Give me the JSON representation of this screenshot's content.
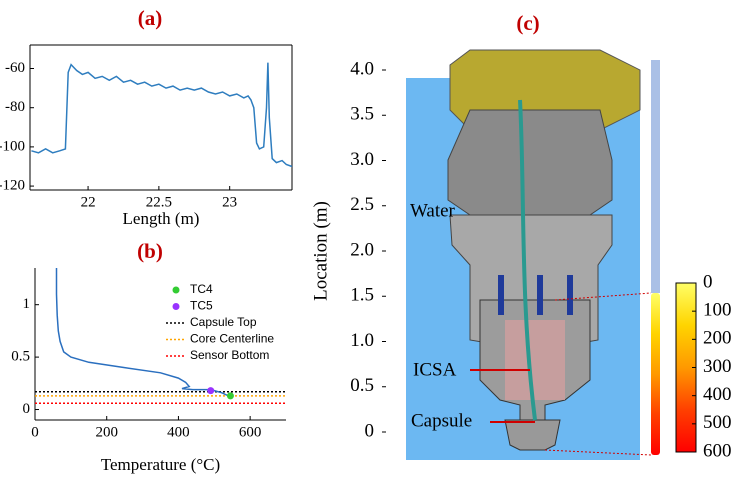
{
  "chart_data": [
    {
      "type": "line",
      "title": "(a)",
      "x_label": "Length (m)",
      "frame": "box",
      "xlim": [
        21.59,
        23.44
      ],
      "xticks": [
        22,
        22.5,
        23
      ],
      "ylim": [
        -122,
        -48
      ],
      "yticks": [
        -60,
        -80,
        -100,
        -120
      ],
      "series": [
        {
          "color": "#2e7dbf",
          "x": [
            21.6,
            21.65,
            21.7,
            21.75,
            21.8,
            21.84,
            21.86,
            21.88,
            21.92,
            21.96,
            22.0,
            22.05,
            22.1,
            22.15,
            22.2,
            22.25,
            22.3,
            22.35,
            22.4,
            22.45,
            22.5,
            22.55,
            22.6,
            22.65,
            22.7,
            22.75,
            22.8,
            22.85,
            22.9,
            22.95,
            23.0,
            23.05,
            23.1,
            23.13,
            23.15,
            23.17,
            23.19,
            23.21,
            23.24,
            23.26,
            23.27,
            23.28,
            23.3,
            23.33,
            23.37,
            23.4,
            23.44
          ],
          "values": [
            -102,
            -103,
            -101,
            -103,
            -102,
            -101,
            -62,
            -58,
            -61,
            -63,
            -62,
            -65,
            -64,
            -66,
            -64,
            -67,
            -66,
            -68,
            -67,
            -69,
            -68,
            -70,
            -69,
            -71,
            -70,
            -71,
            -70,
            -72,
            -73,
            -72,
            -74,
            -73,
            -75,
            -74,
            -76,
            -80,
            -98,
            -101,
            -100,
            -80,
            -57,
            -85,
            -106,
            -108,
            -107,
            -109,
            -110
          ]
        }
      ]
    },
    {
      "type": "line",
      "title": "(b)",
      "x_label": "Temperature (°C)",
      "frame": "axes",
      "xlim": [
        0,
        700
      ],
      "xticks": [
        0,
        200,
        400,
        600
      ],
      "ylim": [
        -0.1,
        1.35
      ],
      "yticks": [
        0,
        0.5,
        1
      ],
      "series": [
        {
          "color": "#2a6fbf",
          "x": [
            60,
            60,
            62,
            65,
            70,
            80,
            100,
            150,
            250,
            350,
            400,
            420,
            430,
            410,
            440,
            480,
            500,
            520,
            540,
            545
          ],
          "values": [
            1.35,
            1.1,
            0.9,
            0.75,
            0.65,
            0.55,
            0.5,
            0.45,
            0.4,
            0.35,
            0.3,
            0.26,
            0.22,
            0.2,
            0.19,
            0.19,
            0.18,
            0.16,
            0.13,
            0.13
          ]
        }
      ],
      "points": [
        {
          "name": "TC4",
          "color": "#33cc33",
          "x": 545,
          "y": 0.13
        },
        {
          "name": "TC5",
          "color": "#9933ff",
          "x": 490,
          "y": 0.18
        }
      ],
      "hlines": [
        {
          "name": "Capsule Top",
          "color": "#000000",
          "value": 0.17
        },
        {
          "name": "Core Centerline",
          "color": "#ffa500",
          "value": 0.13
        },
        {
          "name": "Sensor Bottom",
          "color": "#ff0000",
          "value": 0.06
        }
      ]
    },
    {
      "type": "diagram",
      "title": "(c)",
      "y_label": "Location  (m)",
      "ylim": [
        0,
        4
      ],
      "yticks": [
        {
          "value": 4,
          "label": "4.0"
        },
        3.5,
        {
          "value": 3,
          "label": "3.0"
        },
        2.5,
        {
          "value": 2,
          "label": "2.0"
        },
        1.5,
        {
          "value": 1,
          "label": "1.0"
        },
        0.5,
        0
      ],
      "labels": [
        "Water",
        "ICSA",
        "Capsule"
      ],
      "colorbar": {
        "lim": [
          0,
          600
        ],
        "ticks": [
          0,
          100,
          200,
          300,
          400,
          500,
          600
        ],
        "colors": [
          "#ffff66",
          "#ffd400",
          "#ff9900",
          "#ff4000",
          "#ff0000"
        ]
      }
    }
  ]
}
